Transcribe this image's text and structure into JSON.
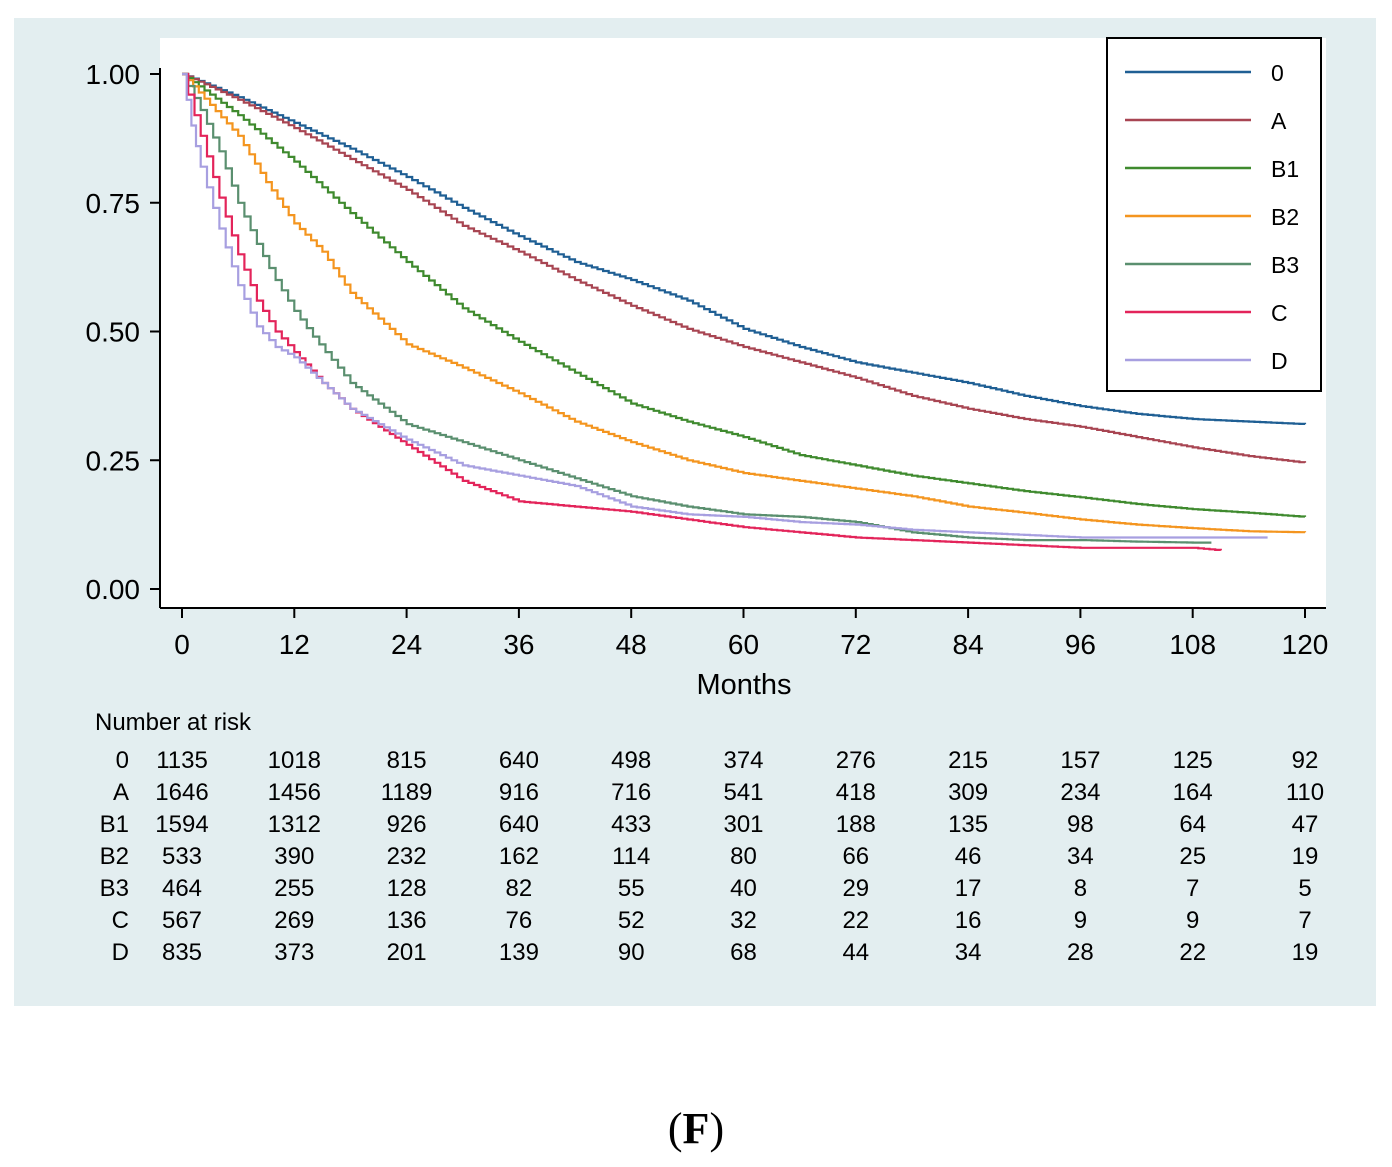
{
  "chart_data": {
    "type": "line",
    "title": "",
    "xlabel": "Months",
    "ylabel": "",
    "xlim": [
      0,
      120
    ],
    "ylim": [
      0,
      1
    ],
    "x_ticks": [
      "0",
      "12",
      "24",
      "36",
      "48",
      "60",
      "72",
      "84",
      "96",
      "108",
      "120"
    ],
    "y_ticks": [
      "0.00",
      "0.25",
      "0.50",
      "0.75",
      "1.00"
    ],
    "legend_position": "top-right",
    "grid": false,
    "series": [
      {
        "name": "0",
        "color": "#1f5f94",
        "x": [
          0,
          6,
          12,
          18,
          24,
          30,
          36,
          42,
          48,
          54,
          60,
          66,
          72,
          78,
          84,
          90,
          96,
          102,
          108,
          114,
          120
        ],
        "y": [
          1.0,
          0.955,
          0.905,
          0.855,
          0.8,
          0.74,
          0.685,
          0.635,
          0.6,
          0.56,
          0.505,
          0.47,
          0.44,
          0.42,
          0.4,
          0.375,
          0.355,
          0.34,
          0.33,
          0.325,
          0.32
        ]
      },
      {
        "name": "A",
        "color": "#a84552",
        "x": [
          0,
          6,
          12,
          18,
          24,
          30,
          36,
          42,
          48,
          54,
          60,
          66,
          72,
          78,
          84,
          90,
          96,
          102,
          108,
          114,
          120
        ],
        "y": [
          1.0,
          0.95,
          0.895,
          0.835,
          0.775,
          0.705,
          0.655,
          0.6,
          0.55,
          0.505,
          0.47,
          0.44,
          0.41,
          0.375,
          0.35,
          0.33,
          0.315,
          0.295,
          0.275,
          0.258,
          0.245
        ]
      },
      {
        "name": "B1",
        "color": "#3f8a2e",
        "x": [
          0,
          3,
          6,
          12,
          18,
          24,
          30,
          36,
          42,
          48,
          54,
          60,
          66,
          72,
          78,
          84,
          90,
          96,
          102,
          108,
          114,
          120
        ],
        "y": [
          1.0,
          0.96,
          0.92,
          0.83,
          0.73,
          0.635,
          0.545,
          0.48,
          0.42,
          0.36,
          0.325,
          0.295,
          0.26,
          0.24,
          0.22,
          0.205,
          0.19,
          0.178,
          0.165,
          0.155,
          0.148,
          0.14
        ]
      },
      {
        "name": "B2",
        "color": "#f4951f",
        "x": [
          0,
          3,
          6,
          9,
          12,
          15,
          18,
          24,
          30,
          36,
          42,
          48,
          54,
          60,
          66,
          72,
          78,
          84,
          90,
          96,
          102,
          108,
          114,
          120
        ],
        "y": [
          1.0,
          0.94,
          0.88,
          0.79,
          0.71,
          0.655,
          0.575,
          0.475,
          0.43,
          0.38,
          0.325,
          0.285,
          0.25,
          0.225,
          0.21,
          0.195,
          0.18,
          0.16,
          0.148,
          0.135,
          0.125,
          0.118,
          0.112,
          0.11
        ]
      },
      {
        "name": "B3",
        "color": "#5a8f6f",
        "x": [
          0,
          2,
          4,
          6,
          8,
          10,
          12,
          14,
          18,
          24,
          30,
          36,
          42,
          48,
          54,
          60,
          66,
          72,
          78,
          84,
          90,
          96,
          102,
          108,
          110
        ],
        "y": [
          1.0,
          0.93,
          0.85,
          0.75,
          0.67,
          0.6,
          0.54,
          0.49,
          0.4,
          0.32,
          0.285,
          0.25,
          0.215,
          0.18,
          0.16,
          0.145,
          0.14,
          0.13,
          0.11,
          0.1,
          0.095,
          0.095,
          0.092,
          0.09,
          0.09
        ]
      },
      {
        "name": "C",
        "color": "#e3245a",
        "x": [
          0,
          2,
          4,
          6,
          8,
          10,
          12,
          15,
          18,
          24,
          30,
          36,
          42,
          48,
          54,
          60,
          66,
          72,
          78,
          84,
          90,
          96,
          102,
          108,
          111
        ],
        "y": [
          1.0,
          0.88,
          0.76,
          0.65,
          0.56,
          0.5,
          0.46,
          0.4,
          0.35,
          0.28,
          0.21,
          0.17,
          0.16,
          0.15,
          0.135,
          0.12,
          0.11,
          0.1,
          0.095,
          0.09,
          0.085,
          0.08,
          0.08,
          0.08,
          0.075
        ]
      },
      {
        "name": "D",
        "color": "#a79fe0",
        "x": [
          0,
          1,
          2,
          4,
          6,
          8,
          10,
          12,
          15,
          18,
          24,
          30,
          36,
          42,
          48,
          54,
          60,
          66,
          72,
          78,
          84,
          90,
          96,
          102,
          108,
          114,
          116
        ],
        "y": [
          1.0,
          0.9,
          0.82,
          0.7,
          0.59,
          0.51,
          0.47,
          0.45,
          0.4,
          0.35,
          0.29,
          0.24,
          0.22,
          0.2,
          0.16,
          0.145,
          0.14,
          0.13,
          0.125,
          0.115,
          0.11,
          0.105,
          0.1,
          0.1,
          0.1,
          0.1,
          0.1
        ]
      }
    ]
  },
  "risk_table": {
    "title": "Number at risk",
    "rows": [
      {
        "label": "0",
        "values": [
          "1135",
          "1018",
          "815",
          "640",
          "498",
          "374",
          "276",
          "215",
          "157",
          "125",
          "92"
        ]
      },
      {
        "label": "A",
        "values": [
          "1646",
          "1456",
          "1189",
          "916",
          "716",
          "541",
          "418",
          "309",
          "234",
          "164",
          "110"
        ]
      },
      {
        "label": "B1",
        "values": [
          "1594",
          "1312",
          "926",
          "640",
          "433",
          "301",
          "188",
          "135",
          "98",
          "64",
          "47"
        ]
      },
      {
        "label": "B2",
        "values": [
          "533",
          "390",
          "232",
          "162",
          "114",
          "80",
          "66",
          "46",
          "34",
          "25",
          "19"
        ]
      },
      {
        "label": "B3",
        "values": [
          "464",
          "255",
          "128",
          "82",
          "55",
          "40",
          "29",
          "17",
          "8",
          "7",
          "5"
        ]
      },
      {
        "label": "C",
        "values": [
          "567",
          "269",
          "136",
          "76",
          "52",
          "32",
          "22",
          "16",
          "9",
          "9",
          "7"
        ]
      },
      {
        "label": "D",
        "values": [
          "835",
          "373",
          "201",
          "139",
          "90",
          "68",
          "44",
          "34",
          "28",
          "22",
          "19"
        ]
      }
    ]
  },
  "caption": {
    "open": "(",
    "letter": "F",
    "close": ")"
  }
}
